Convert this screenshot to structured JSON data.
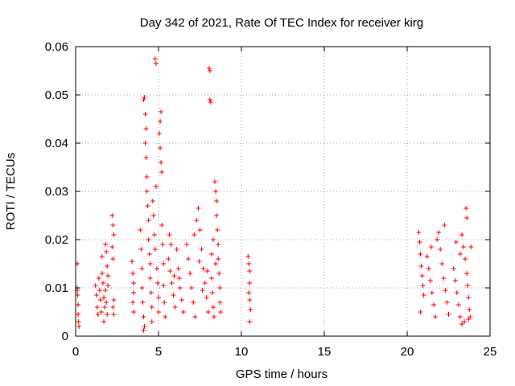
{
  "chart_data": {
    "type": "scatter",
    "title": "Day 342 of 2021, Rate Of TEC Index for receiver kirg",
    "xlabel": "GPS time / hours",
    "ylabel": "ROTI / TECUs",
    "xlim": [
      0,
      25
    ],
    "ylim": [
      0,
      0.06
    ],
    "x_ticks": [
      0,
      5,
      10,
      15,
      20,
      25
    ],
    "x_tick_labels": [
      "0",
      "5",
      "10",
      "15",
      "20",
      "25"
    ],
    "y_ticks": [
      0,
      0.01,
      0.02,
      0.03,
      0.04,
      0.05,
      0.06
    ],
    "y_tick_labels": [
      "0",
      "0.01",
      "0.02",
      "0.03",
      "0.04",
      "0.05",
      "0.06"
    ],
    "grid": true,
    "marker": "plus",
    "series_color": "#ff0000",
    "series": [
      {
        "name": "ROTI",
        "points": [
          [
            0.1,
            0.015
          ],
          [
            0.1,
            0.01
          ],
          [
            0.12,
            0.0085
          ],
          [
            0.15,
            0.0065
          ],
          [
            0.15,
            0.0045
          ],
          [
            0.18,
            0.003
          ],
          [
            0.2,
            0.002
          ],
          [
            0.1,
            0.0095
          ],
          [
            1.2,
            0.0105
          ],
          [
            1.25,
            0.0085
          ],
          [
            1.3,
            0.006
          ],
          [
            1.35,
            0.0045
          ],
          [
            1.4,
            0.012
          ],
          [
            1.45,
            0.0095
          ],
          [
            1.5,
            0.0075
          ],
          [
            1.55,
            0.005
          ],
          [
            1.6,
            0.013
          ],
          [
            1.65,
            0.011
          ],
          [
            1.7,
            0.008
          ],
          [
            1.75,
            0.006
          ],
          [
            1.8,
            0.019
          ],
          [
            1.85,
            0.0175
          ],
          [
            1.9,
            0.0145
          ],
          [
            1.95,
            0.0125
          ],
          [
            1.8,
            0.0095
          ],
          [
            1.85,
            0.007
          ],
          [
            1.9,
            0.0045
          ],
          [
            1.7,
            0.003
          ],
          [
            1.6,
            0.0165
          ],
          [
            1.95,
            0.0105
          ],
          [
            2.2,
            0.025
          ],
          [
            2.25,
            0.023
          ],
          [
            2.3,
            0.021
          ],
          [
            2.2,
            0.0185
          ],
          [
            2.25,
            0.016
          ],
          [
            2.3,
            0.0075
          ],
          [
            2.25,
            0.006
          ],
          [
            2.3,
            0.0045
          ],
          [
            3.4,
            0.0155
          ],
          [
            3.45,
            0.013
          ],
          [
            3.5,
            0.011
          ],
          [
            3.5,
            0.009
          ],
          [
            3.45,
            0.007
          ],
          [
            3.5,
            0.005
          ],
          [
            3.9,
            0.022
          ],
          [
            3.95,
            0.018
          ],
          [
            4.0,
            0.014
          ],
          [
            4.0,
            0.01
          ],
          [
            4.05,
            0.007
          ],
          [
            4.1,
            0.004
          ],
          [
            4.15,
            0.002
          ],
          [
            4.1,
            0.0012
          ],
          [
            4.1,
            0.049
          ],
          [
            4.15,
            0.0495
          ],
          [
            4.2,
            0.046
          ],
          [
            4.25,
            0.043
          ],
          [
            4.2,
            0.04
          ],
          [
            4.25,
            0.037
          ],
          [
            4.3,
            0.033
          ],
          [
            4.3,
            0.03
          ],
          [
            4.35,
            0.027
          ],
          [
            4.4,
            0.024
          ],
          [
            4.4,
            0.02
          ],
          [
            4.45,
            0.017
          ],
          [
            4.5,
            0.015
          ],
          [
            4.5,
            0.012
          ],
          [
            4.55,
            0.009
          ],
          [
            4.6,
            0.006
          ],
          [
            4.6,
            0.003
          ],
          [
            4.65,
            0.028
          ],
          [
            4.7,
            0.025
          ],
          [
            4.75,
            0.021
          ],
          [
            4.8,
            0.018
          ],
          [
            4.8,
            0.0575
          ],
          [
            4.85,
            0.0565
          ],
          [
            4.85,
            0.031
          ],
          [
            4.9,
            0.014
          ],
          [
            4.95,
            0.011
          ],
          [
            5.0,
            0.008
          ],
          [
            5.0,
            0.005
          ],
          [
            5.05,
            0.042
          ],
          [
            5.1,
            0.0445
          ],
          [
            5.15,
            0.0465
          ],
          [
            5.1,
            0.039
          ],
          [
            5.15,
            0.036
          ],
          [
            5.2,
            0.034
          ],
          [
            5.2,
            0.023
          ],
          [
            5.25,
            0.019
          ],
          [
            5.3,
            0.015
          ],
          [
            5.3,
            0.0105
          ],
          [
            5.35,
            0.007
          ],
          [
            5.4,
            0.004
          ],
          [
            5.6,
            0.016
          ],
          [
            5.7,
            0.0135
          ],
          [
            5.8,
            0.011
          ],
          [
            5.9,
            0.0085
          ],
          [
            6.0,
            0.006
          ],
          [
            6.1,
            0.018
          ],
          [
            6.2,
            0.014
          ],
          [
            6.3,
            0.01
          ],
          [
            6.4,
            0.0075
          ],
          [
            6.5,
            0.005
          ],
          [
            5.65,
            0.021
          ],
          [
            5.75,
            0.019
          ],
          [
            5.95,
            0.0125
          ],
          [
            6.25,
            0.012
          ],
          [
            6.7,
            0.019
          ],
          [
            6.8,
            0.016
          ],
          [
            6.9,
            0.013
          ],
          [
            7.0,
            0.01
          ],
          [
            7.1,
            0.007
          ],
          [
            7.2,
            0.004
          ],
          [
            7.3,
            0.024
          ],
          [
            7.4,
            0.0265
          ],
          [
            7.5,
            0.022
          ],
          [
            7.6,
            0.018
          ],
          [
            7.7,
            0.014
          ],
          [
            7.8,
            0.011
          ],
          [
            7.9,
            0.008
          ],
          [
            8.0,
            0.005
          ],
          [
            7.15,
            0.021
          ],
          [
            7.45,
            0.0155
          ],
          [
            8.05,
            0.0555
          ],
          [
            8.1,
            0.055
          ],
          [
            8.1,
            0.049
          ],
          [
            8.15,
            0.0485
          ],
          [
            8.2,
            0.012
          ],
          [
            8.25,
            0.009
          ],
          [
            8.3,
            0.006
          ],
          [
            8.35,
            0.004
          ],
          [
            8.4,
            0.032
          ],
          [
            8.45,
            0.03
          ],
          [
            8.5,
            0.028
          ],
          [
            8.5,
            0.025
          ],
          [
            8.55,
            0.022
          ],
          [
            8.6,
            0.019
          ],
          [
            8.6,
            0.016
          ],
          [
            8.65,
            0.013
          ],
          [
            8.7,
            0.01
          ],
          [
            8.7,
            0.007
          ],
          [
            8.75,
            0.005
          ],
          [
            8.3,
            0.02
          ],
          [
            8.2,
            0.017
          ],
          [
            7.95,
            0.0135
          ],
          [
            7.65,
            0.0095
          ],
          [
            8.45,
            0.015
          ],
          [
            10.4,
            0.0165
          ],
          [
            10.45,
            0.015
          ],
          [
            10.5,
            0.0135
          ],
          [
            10.5,
            0.011
          ],
          [
            10.45,
            0.009
          ],
          [
            10.5,
            0.0075
          ],
          [
            10.55,
            0.0055
          ],
          [
            10.5,
            0.003
          ],
          [
            20.7,
            0.0215
          ],
          [
            20.75,
            0.0195
          ],
          [
            20.8,
            0.017
          ],
          [
            20.85,
            0.0145
          ],
          [
            20.9,
            0.0125
          ],
          [
            20.95,
            0.0105
          ],
          [
            21.0,
            0.0085
          ],
          [
            20.8,
            0.005
          ],
          [
            21.2,
            0.0165
          ],
          [
            21.3,
            0.014
          ],
          [
            21.4,
            0.0115
          ],
          [
            21.5,
            0.009
          ],
          [
            21.6,
            0.0065
          ],
          [
            21.7,
            0.004
          ],
          [
            21.8,
            0.02
          ],
          [
            21.9,
            0.0215
          ],
          [
            22.0,
            0.018
          ],
          [
            22.1,
            0.015
          ],
          [
            22.2,
            0.012
          ],
          [
            22.25,
            0.023
          ],
          [
            22.3,
            0.0095
          ],
          [
            22.4,
            0.007
          ],
          [
            22.5,
            0.0045
          ],
          [
            21.45,
            0.0185
          ],
          [
            22.8,
            0.014
          ],
          [
            22.9,
            0.0115
          ],
          [
            23.0,
            0.009
          ],
          [
            23.1,
            0.0065
          ],
          [
            23.2,
            0.004
          ],
          [
            23.3,
            0.021
          ],
          [
            23.4,
            0.0185
          ],
          [
            23.5,
            0.016
          ],
          [
            23.55,
            0.0265
          ],
          [
            23.6,
            0.0245
          ],
          [
            23.6,
            0.013
          ],
          [
            23.65,
            0.0105
          ],
          [
            23.7,
            0.008
          ],
          [
            23.75,
            0.0055
          ],
          [
            23.8,
            0.004
          ],
          [
            23.85,
            0.0185
          ],
          [
            23.3,
            0.0025
          ],
          [
            23.45,
            0.003
          ],
          [
            23.7,
            0.0035
          ],
          [
            23.2,
            0.017
          ],
          [
            22.95,
            0.0195
          ]
        ]
      }
    ]
  }
}
